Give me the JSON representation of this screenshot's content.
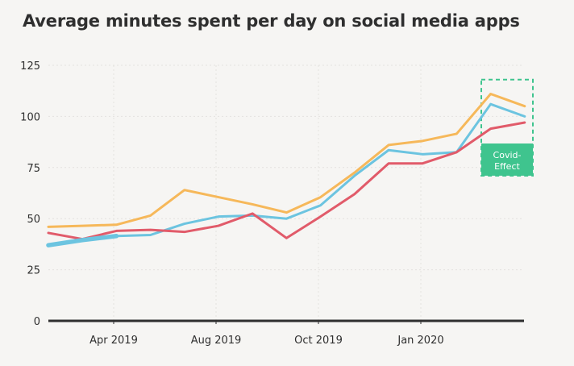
{
  "chart_data": {
    "type": "line",
    "title": "Average minutes spent per day on social media apps",
    "xlabel": "",
    "ylabel": "",
    "ylim": [
      0,
      125
    ],
    "yticks": [
      0,
      25,
      50,
      75,
      100,
      125
    ],
    "xtick_labels": [
      "Apr 2019",
      "Aug 2019",
      "Oct 2019",
      "Jan 2020"
    ],
    "grid": true,
    "series": [
      {
        "color": "#f6b85a",
        "values": [
          46,
          46.5,
          47,
          51.5,
          64,
          60.5,
          57,
          53,
          60.5,
          72.5,
          86,
          88,
          91.5,
          111,
          105
        ]
      },
      {
        "color": "#6cc4e0",
        "values": [
          37,
          39.5,
          41.5,
          42,
          47.5,
          51,
          51.5,
          50,
          56.5,
          71,
          83.5,
          81.5,
          82.5,
          106,
          100
        ]
      },
      {
        "color": "#e15b6a",
        "values": [
          43,
          40,
          44,
          44.5,
          43.5,
          46.5,
          52.5,
          40.5,
          51,
          62,
          77,
          77,
          82.5,
          94,
          97
        ]
      }
    ],
    "highlight": {
      "color": "#3fc48e",
      "value_range": [
        71,
        118
      ],
      "label_lines": [
        "Covid-",
        "Effect"
      ]
    }
  }
}
